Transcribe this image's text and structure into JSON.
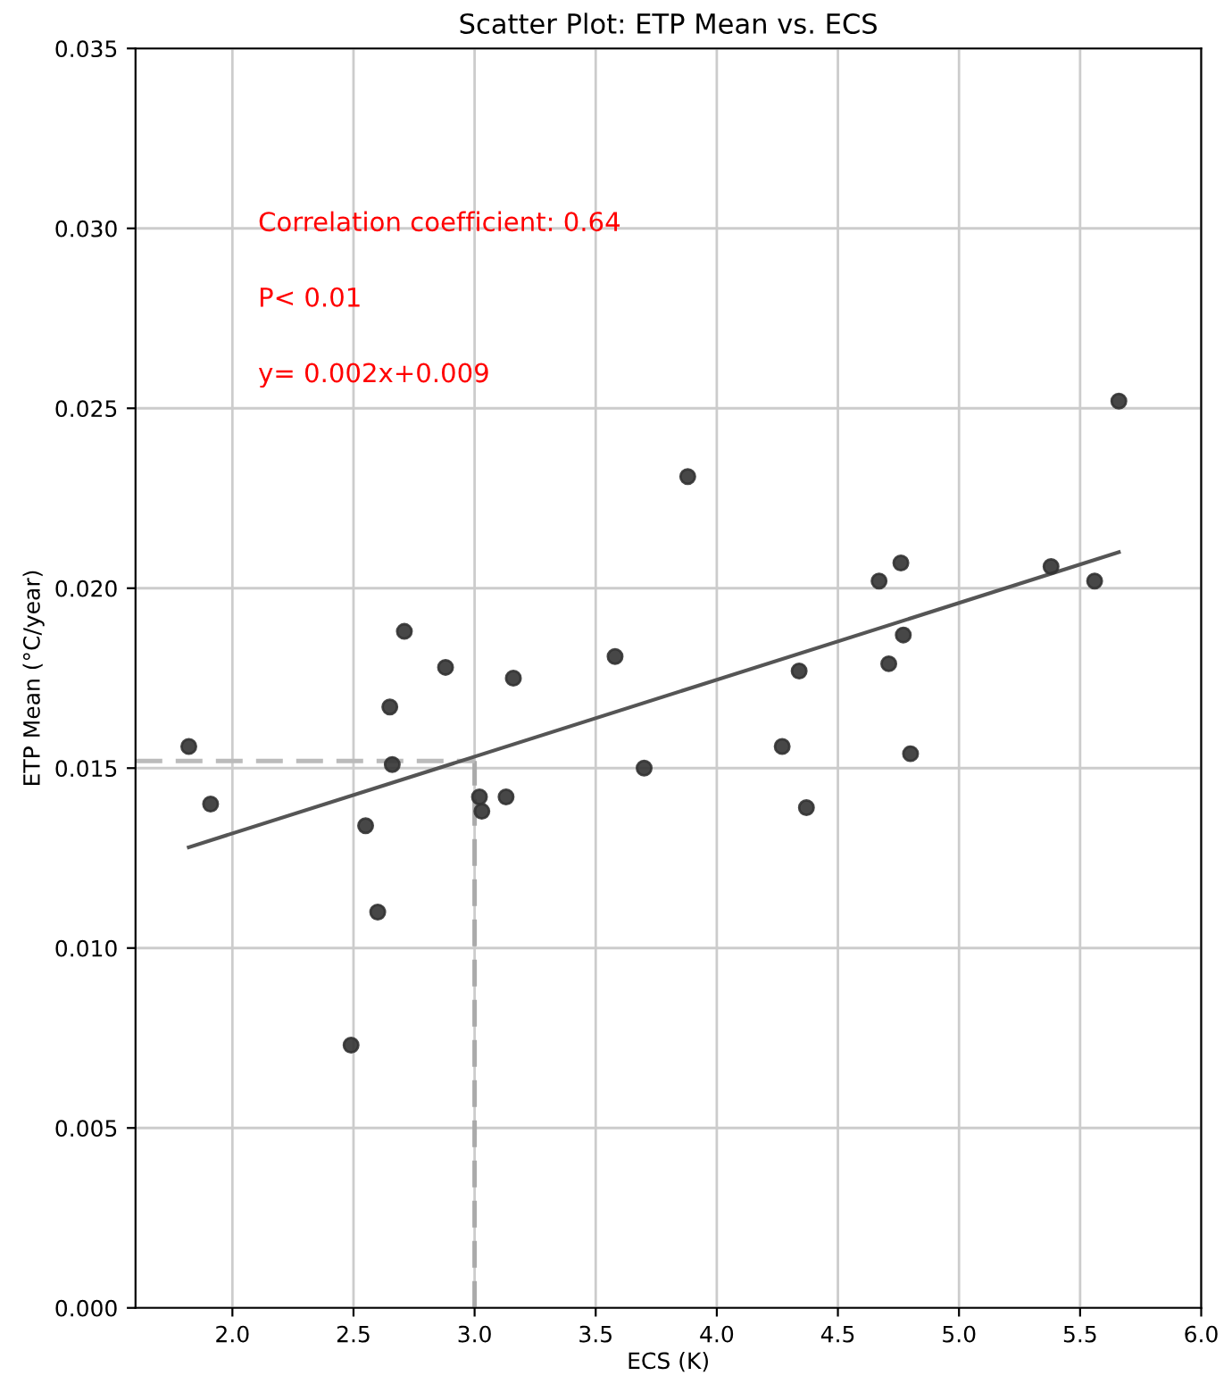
{
  "chart_data": {
    "type": "scatter",
    "title": "Scatter Plot: ETP Mean vs. ECS",
    "xlabel": "ECS (K)",
    "ylabel": "ETP Mean (°C/year)",
    "annotations": [
      "Correlation coefficient: 0.64",
      "P< 0.01",
      "y= 0.002x+0.009"
    ],
    "series": [
      {
        "marker": "circle",
        "color": "#333333",
        "x": [
          1.82,
          1.91,
          2.55,
          2.6,
          2.49,
          2.65,
          2.66,
          2.71,
          2.88,
          3.02,
          3.03,
          3.13,
          3.16,
          3.58,
          3.7,
          3.88,
          4.27,
          4.34,
          4.37,
          4.67,
          4.71,
          4.76,
          4.77,
          4.8,
          5.38,
          5.56,
          5.66
        ],
        "values": [
          0.0156,
          0.014,
          0.0134,
          0.011,
          0.0073,
          0.0167,
          0.0151,
          0.0188,
          0.0178,
          0.0142,
          0.0138,
          0.0142,
          0.0175,
          0.0181,
          0.015,
          0.0231,
          0.0156,
          0.0177,
          0.0139,
          0.0202,
          0.0179,
          0.0207,
          0.0187,
          0.0154,
          0.0206,
          0.0202,
          0.0252
        ]
      },
      {
        "type": "line",
        "color": "#555555",
        "x": [
          1.82,
          5.66
        ],
        "values": [
          0.0128,
          0.021
        ]
      }
    ],
    "ref_lines": [
      {
        "axis": "x",
        "value": 3.0,
        "color": "#aaaaaa",
        "line_style": "dashed"
      },
      {
        "axis": "y",
        "value": 0.0152,
        "color": "#bbbbbb",
        "line_style": "dashed"
      }
    ],
    "xlim": [
      1.6,
      6.0
    ],
    "xticks": [
      {
        "value": 2,
        "label": "2.0"
      },
      2.5,
      {
        "value": 3,
        "label": "3.0"
      },
      3.5,
      {
        "value": 4,
        "label": "4.0"
      },
      4.5,
      {
        "value": 5,
        "label": "5.0"
      },
      5.5,
      {
        "value": 6,
        "label": "6.0"
      }
    ],
    "ylim": [
      0,
      0.035
    ],
    "yticks": [
      {
        "value": 0,
        "label": "0.000"
      },
      0.005,
      {
        "value": 0.01,
        "label": "0.010"
      },
      0.015,
      {
        "value": 0.02,
        "label": "0.020"
      },
      0.025,
      {
        "value": 0.03,
        "label": "0.030"
      },
      0.035
    ],
    "grid": true
  }
}
